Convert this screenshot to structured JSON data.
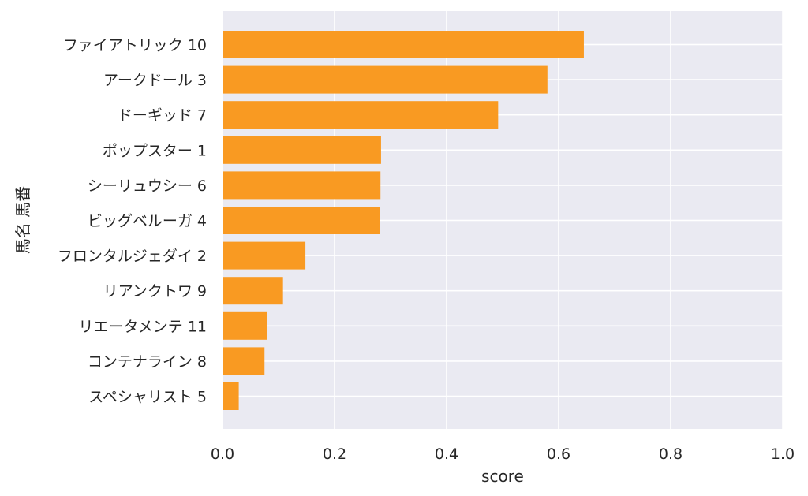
{
  "chart_data": {
    "type": "bar",
    "orientation": "horizontal",
    "title": "",
    "xlabel": "score",
    "ylabel": "馬名 馬番",
    "xlim": [
      0.0,
      1.0
    ],
    "xticks": [
      "0.0",
      "0.2",
      "0.4",
      "0.6",
      "0.8",
      "1.0"
    ],
    "grid": true,
    "bar_color": "#f99a22",
    "plot_background": "#eaeaf2",
    "categories": [
      "ファイアトリック 10",
      "アークドール 3",
      "ドーギッド 7",
      "ポップスター 1",
      "シーリュウシー 6",
      "ビッグベルーガ 4",
      "フロンタルジェダイ 2",
      "リアンクトワ 9",
      "リエータメンテ 11",
      "コンテナライン 8",
      "スペシャリスト 5"
    ],
    "values": [
      0.645,
      0.58,
      0.492,
      0.283,
      0.282,
      0.281,
      0.148,
      0.108,
      0.079,
      0.075,
      0.029
    ]
  }
}
